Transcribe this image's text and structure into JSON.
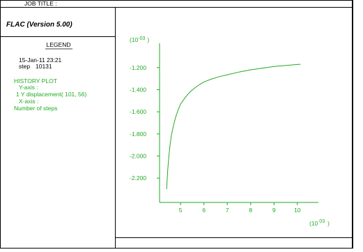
{
  "header": {
    "job_title_label": "JOB TITLE :"
  },
  "sidebar": {
    "software": "FLAC (Version 5.00)",
    "legend_title": "LEGEND",
    "date_time": "15-Jan-11  23:21",
    "step_label": "step",
    "step_value": "10131",
    "history_title": "HISTORY PLOT",
    "y_axis_label": "Y-axis :",
    "y_axis_desc": "1 Y displacement( 101,  56)",
    "x_axis_label": "X-axis :",
    "x_axis_desc": "Number of steps"
  },
  "colors": {
    "plot": "#22aa22",
    "frame": "#000000"
  },
  "chart_data": {
    "type": "line",
    "title": "",
    "xlabel": "",
    "ylabel": "",
    "y_multiplier_label": "(10",
    "y_multiplier_exp": "-03",
    "y_multiplier_close": ")",
    "x_multiplier_label": "(10",
    "x_multiplier_exp": "03",
    "x_multiplier_close": ")",
    "xlim": [
      4.1,
      10.9
    ],
    "ylim": [
      -2.42,
      -0.98
    ],
    "x_ticks": [
      5,
      6,
      7,
      8,
      9,
      10
    ],
    "x_tick_labels": [
      "5",
      "6",
      "7",
      "8",
      "9",
      "10"
    ],
    "y_ticks": [
      -1.2,
      -1.4,
      -1.6,
      -1.8,
      -2.0,
      -2.2
    ],
    "y_tick_labels": [
      "-1.200",
      "-1.400",
      "-1.600",
      "-1.800",
      "-2.000",
      "-2.200"
    ],
    "series": [
      {
        "values_x": [
          4.4,
          4.45,
          4.5,
          4.55,
          4.6,
          4.7,
          4.8,
          4.9,
          5.0,
          5.2,
          5.4,
          5.6,
          5.8,
          6.0,
          6.3,
          6.6,
          7.0,
          7.5,
          8.0,
          8.5,
          9.0,
          9.5,
          10.0,
          10.13
        ],
        "values_y": [
          -2.3,
          -2.13,
          -2.0,
          -1.9,
          -1.82,
          -1.72,
          -1.64,
          -1.58,
          -1.53,
          -1.47,
          -1.42,
          -1.385,
          -1.355,
          -1.33,
          -1.305,
          -1.285,
          -1.265,
          -1.24,
          -1.22,
          -1.205,
          -1.19,
          -1.18,
          -1.172,
          -1.17
        ]
      }
    ]
  }
}
